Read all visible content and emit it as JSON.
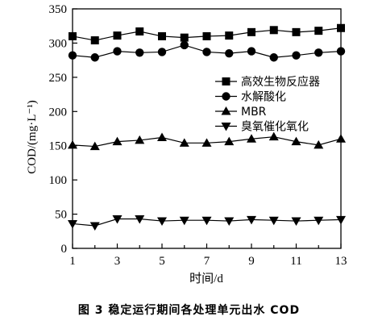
{
  "chart_data": {
    "type": "line",
    "title": "",
    "xlabel": "时间/d",
    "ylabel": "COD/(mg·L⁻¹)",
    "x": [
      1,
      2,
      3,
      4,
      5,
      6,
      7,
      8,
      9,
      10,
      11,
      12,
      13
    ],
    "xticks": [
      1,
      3,
      5,
      7,
      9,
      11,
      13
    ],
    "yticks": [
      0,
      50,
      100,
      150,
      200,
      250,
      300,
      350
    ],
    "xlim": [
      1,
      13
    ],
    "ylim": [
      0,
      350
    ],
    "grid": false,
    "legend_position": "upper-right",
    "series": [
      {
        "name": "高效生物反应器",
        "marker": "square",
        "values": [
          310,
          304,
          311,
          317,
          310,
          308,
          310,
          311,
          316,
          319,
          316,
          318,
          322
        ]
      },
      {
        "name": "水解酸化",
        "marker": "circle",
        "values": [
          282,
          279,
          288,
          286,
          287,
          297,
          287,
          285,
          288,
          279,
          282,
          286,
          288
        ]
      },
      {
        "name": "MBR",
        "marker": "triangle-up",
        "values": [
          151,
          149,
          156,
          158,
          162,
          154,
          154,
          156,
          160,
          163,
          156,
          151,
          160
        ]
      },
      {
        "name": "臭氧催化氧化",
        "marker": "triangle-down",
        "values": [
          36,
          33,
          43,
          43,
          40,
          41,
          41,
          40,
          42,
          41,
          40,
          41,
          42
        ]
      }
    ]
  },
  "caption": "图 3   稳定运行期间各处理单元出水 COD"
}
